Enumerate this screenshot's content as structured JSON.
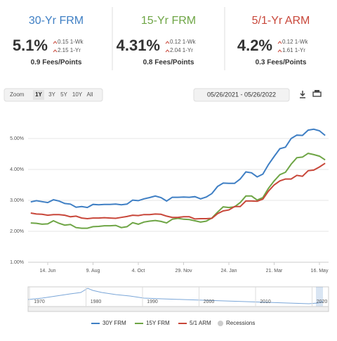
{
  "rate_cards": [
    {
      "title": "30-Yr FRM",
      "rate": "5.1%",
      "week_change": "0.15 1-Wk",
      "year_change": "2.15 1-Yr",
      "fees": "0.9 Fees/Points",
      "color": "#3f7fc4"
    },
    {
      "title": "15-Yr FRM",
      "rate": "4.31%",
      "week_change": "0.12 1-Wk",
      "year_change": "2.04 1-Yr",
      "fees": "0.8 Fees/Points",
      "color": "#6ea545"
    },
    {
      "title": "5/1-Yr ARM",
      "rate": "4.2%",
      "week_change": "0.12 1-Wk",
      "year_change": "1.61 1-Yr",
      "fees": "0.3 Fees/Points",
      "color": "#c8473a"
    }
  ],
  "toolbar": {
    "zoom_label": "Zoom",
    "zoom_options": [
      "1Y",
      "3Y",
      "5Y",
      "10Y",
      "All"
    ],
    "date_range": "05/26/2021 - 05/26/2022"
  },
  "chart_data": {
    "type": "line",
    "categories": [
      null,
      null,
      null,
      "14. Jun",
      null,
      null,
      null,
      null,
      null,
      null,
      null,
      "9. Aug",
      null,
      null,
      null,
      null,
      null,
      null,
      null,
      "4. Oct",
      null,
      null,
      null,
      null,
      null,
      null,
      null,
      "29. Nov",
      null,
      null,
      null,
      null,
      null,
      null,
      null,
      "24. Jan",
      null,
      null,
      null,
      null,
      null,
      null,
      null,
      "21. Mar",
      null,
      null,
      null,
      null,
      null,
      null,
      null,
      "16. May",
      null
    ],
    "series": [
      {
        "name": "30Y FRM",
        "color": "#3f7fc4",
        "values": [
          2.95,
          2.99,
          2.96,
          2.93,
          3.02,
          2.98,
          2.9,
          2.88,
          2.78,
          2.8,
          2.77,
          2.87,
          2.86,
          2.87,
          2.87,
          2.88,
          2.86,
          2.88,
          3.01,
          2.99,
          3.05,
          3.09,
          3.14,
          3.09,
          2.98,
          3.1,
          3.1,
          3.11,
          3.1,
          3.12,
          3.05,
          3.11,
          3.22,
          3.45,
          3.56,
          3.55,
          3.55,
          3.69,
          3.92,
          3.89,
          3.76,
          3.85,
          4.16,
          4.42,
          4.67,
          4.72,
          5.0,
          5.11,
          5.1,
          5.27,
          5.3,
          5.25,
          5.1
        ]
      },
      {
        "name": "15Y FRM",
        "color": "#6ea545",
        "values": [
          2.27,
          2.26,
          2.23,
          2.24,
          2.34,
          2.26,
          2.2,
          2.22,
          2.12,
          2.1,
          2.1,
          2.15,
          2.16,
          2.18,
          2.18,
          2.19,
          2.12,
          2.15,
          2.28,
          2.23,
          2.3,
          2.33,
          2.35,
          2.32,
          2.27,
          2.39,
          2.42,
          2.39,
          2.38,
          2.34,
          2.3,
          2.33,
          2.43,
          2.62,
          2.79,
          2.77,
          2.79,
          2.93,
          3.14,
          3.14,
          3.01,
          3.09,
          3.39,
          3.63,
          3.83,
          3.91,
          4.17,
          4.38,
          4.4,
          4.52,
          4.48,
          4.43,
          4.31
        ]
      },
      {
        "name": "5/1 ARM",
        "color": "#c8473a",
        "values": [
          2.59,
          2.56,
          2.55,
          2.52,
          2.54,
          2.54,
          2.52,
          2.47,
          2.49,
          2.43,
          2.41,
          2.43,
          2.43,
          2.44,
          2.43,
          2.42,
          2.45,
          2.48,
          2.52,
          2.51,
          2.54,
          2.54,
          2.56,
          2.55,
          2.49,
          2.45,
          2.45,
          2.47,
          2.47,
          2.4,
          2.41,
          2.41,
          2.42,
          2.57,
          2.66,
          2.69,
          2.8,
          2.8,
          2.98,
          2.98,
          2.97,
          3.04,
          3.3,
          3.5,
          3.63,
          3.69,
          3.69,
          3.81,
          3.78,
          3.96,
          3.98,
          4.08,
          4.2
        ]
      }
    ],
    "recession_legend": {
      "name": "Recessions",
      "color": "#cccccc"
    },
    "ylim": [
      1,
      6
    ],
    "yticks": [
      {
        "value": 1,
        "label": "1.00%"
      },
      {
        "value": 2,
        "label": "2.00%"
      },
      {
        "value": 3,
        "label": "3.00%"
      },
      {
        "value": 4,
        "label": "4.00%"
      },
      {
        "value": 5,
        "label": "5.00%"
      }
    ],
    "grid": true
  },
  "navigator": {
    "labels": [
      "1970",
      "1980",
      "1990",
      "2000",
      "2010",
      "2020"
    ]
  }
}
